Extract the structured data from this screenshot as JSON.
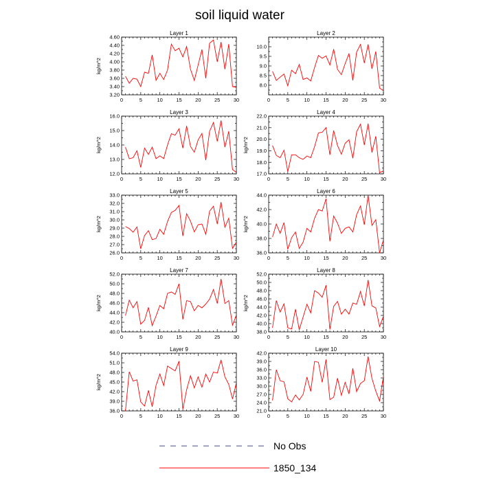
{
  "title": "soil liquid water",
  "legend": [
    {
      "label": "No Obs",
      "style": "dashed",
      "color": "#4a4a8a"
    },
    {
      "label": "1850_134",
      "style": "solid",
      "color": "#ff0000"
    }
  ],
  "chart_data": [
    {
      "type": "line",
      "title": "Layer 1",
      "ylabel": "kg/m^2",
      "xlim": [
        0,
        30
      ],
      "ylim": [
        3.2,
        4.6
      ],
      "yticks": [
        "3.20",
        "3.40",
        "3.60",
        "3.80",
        "4.00",
        "4.20",
        "4.40",
        "4.60"
      ],
      "xticks": [
        "0",
        "5",
        "10",
        "15",
        "20",
        "25",
        "30"
      ],
      "x": [
        1,
        2,
        3,
        4,
        5,
        6,
        7,
        8,
        9,
        10,
        11,
        12,
        13,
        14,
        15,
        16,
        17,
        18,
        19,
        20,
        21,
        22,
        23,
        24,
        25,
        26,
        27,
        28,
        29,
        30
      ],
      "series": [
        {
          "color": "#ff0000",
          "values": [
            3.65,
            3.48,
            3.6,
            3.58,
            3.4,
            3.75,
            3.72,
            4.17,
            3.55,
            3.72,
            3.57,
            3.8,
            4.43,
            4.27,
            4.33,
            4.12,
            4.37,
            3.82,
            3.55,
            3.92,
            4.3,
            3.6,
            4.45,
            4.53,
            4.0,
            4.48,
            3.82,
            4.43,
            3.4,
            3.38
          ]
        }
      ]
    },
    {
      "type": "line",
      "title": "Layer 2",
      "ylabel": "",
      "xlim": [
        0,
        30
      ],
      "ylim": [
        7.5,
        10.5
      ],
      "yticks": [
        "8.0",
        "8.5",
        "9.0",
        "9.5",
        "10.0"
      ],
      "xticks": [
        "0",
        "5",
        "10",
        "15",
        "20",
        "25",
        "30"
      ],
      "x": [
        1,
        2,
        3,
        4,
        5,
        6,
        7,
        8,
        9,
        10,
        11,
        12,
        13,
        14,
        15,
        16,
        17,
        18,
        19,
        20,
        21,
        22,
        23,
        24,
        25,
        26,
        27,
        28,
        29,
        30
      ],
      "series": [
        {
          "color": "#ff0000",
          "values": [
            8.72,
            8.25,
            8.42,
            8.58,
            7.97,
            8.78,
            8.6,
            9.08,
            8.3,
            8.38,
            8.22,
            8.92,
            9.55,
            9.4,
            9.52,
            9.05,
            9.87,
            8.82,
            8.55,
            9.12,
            9.65,
            8.25,
            9.72,
            10.12,
            9.15,
            10.12,
            8.85,
            9.75,
            7.85,
            7.72
          ]
        }
      ]
    },
    {
      "type": "line",
      "title": "Layer 3",
      "ylabel": "kg/m^2",
      "xlim": [
        0,
        30
      ],
      "ylim": [
        12.0,
        16.0
      ],
      "yticks": [
        "12.0",
        "13.0",
        "14.0",
        "15.0",
        "16.0"
      ],
      "xticks": [
        "0",
        "5",
        "10",
        "15",
        "20",
        "25",
        "30"
      ],
      "x": [
        1,
        2,
        3,
        4,
        5,
        6,
        7,
        8,
        9,
        10,
        11,
        12,
        13,
        14,
        15,
        16,
        17,
        18,
        19,
        20,
        21,
        22,
        23,
        24,
        25,
        26,
        27,
        28,
        29,
        30
      ],
      "series": [
        {
          "color": "#ff0000",
          "values": [
            13.85,
            13.05,
            13.12,
            13.6,
            12.45,
            13.78,
            13.35,
            13.85,
            13.05,
            13.25,
            13.05,
            14.0,
            14.78,
            14.68,
            15.12,
            13.78,
            15.32,
            13.9,
            13.5,
            14.35,
            14.8,
            12.95,
            14.95,
            15.55,
            14.25,
            15.7,
            13.85,
            14.95,
            12.3,
            12.1
          ]
        }
      ]
    },
    {
      "type": "line",
      "title": "Layer 4",
      "ylabel": "kg/m^2",
      "xlim": [
        0,
        30
      ],
      "ylim": [
        17.0,
        22.0
      ],
      "yticks": [
        "17.0",
        "18.0",
        "19.0",
        "20.0",
        "21.0",
        "22.0"
      ],
      "xticks": [
        "0",
        "5",
        "10",
        "15",
        "20",
        "25",
        "30"
      ],
      "x": [
        1,
        2,
        3,
        4,
        5,
        6,
        7,
        8,
        9,
        10,
        11,
        12,
        13,
        14,
        15,
        16,
        17,
        18,
        19,
        20,
        21,
        22,
        23,
        24,
        25,
        26,
        27,
        28,
        29,
        30
      ],
      "series": [
        {
          "color": "#ff0000",
          "values": [
            19.45,
            18.6,
            18.4,
            19.05,
            17.2,
            18.65,
            18.65,
            18.4,
            18.25,
            18.55,
            18.4,
            19.35,
            20.55,
            20.6,
            21.0,
            18.65,
            20.75,
            19.45,
            18.7,
            19.65,
            19.95,
            18.35,
            20.65,
            21.3,
            19.5,
            21.35,
            18.85,
            20.25,
            17.1,
            17.25
          ]
        }
      ]
    },
    {
      "type": "line",
      "title": "Layer 5",
      "ylabel": "kg/m^2",
      "xlim": [
        0,
        30
      ],
      "ylim": [
        26.0,
        33.0
      ],
      "yticks": [
        "26.0",
        "27.0",
        "28.0",
        "29.0",
        "30.0",
        "31.0",
        "32.0",
        "33.0"
      ],
      "xticks": [
        "0",
        "5",
        "10",
        "15",
        "20",
        "25",
        "30"
      ],
      "x": [
        1,
        2,
        3,
        4,
        5,
        6,
        7,
        8,
        9,
        10,
        11,
        12,
        13,
        14,
        15,
        16,
        17,
        18,
        19,
        20,
        21,
        22,
        23,
        24,
        25,
        26,
        27,
        28,
        29,
        30
      ],
      "series": [
        {
          "color": "#ff0000",
          "values": [
            29.2,
            28.95,
            28.5,
            29.15,
            26.5,
            28.1,
            28.7,
            27.6,
            27.75,
            28.85,
            28.25,
            29.8,
            30.9,
            31.15,
            31.75,
            28.05,
            30.75,
            29.85,
            28.55,
            29.4,
            29.5,
            28.25,
            31.05,
            31.65,
            29.5,
            32.15,
            29.1,
            30.2,
            26.55,
            27.3
          ]
        }
      ]
    },
    {
      "type": "line",
      "title": "Layer 6",
      "ylabel": "kg/m^2",
      "xlim": [
        0,
        30
      ],
      "ylim": [
        36.0,
        44.0
      ],
      "yticks": [
        "36.0",
        "38.0",
        "40.0",
        "42.0",
        "44.0"
      ],
      "xticks": [
        "0",
        "5",
        "10",
        "15",
        "20",
        "25",
        "30"
      ],
      "x": [
        1,
        2,
        3,
        4,
        5,
        6,
        7,
        8,
        9,
        10,
        11,
        12,
        13,
        14,
        15,
        16,
        17,
        18,
        19,
        20,
        21,
        22,
        23,
        24,
        25,
        26,
        27,
        28,
        29,
        30
      ],
      "series": [
        {
          "color": "#ff0000",
          "values": [
            38.2,
            40.0,
            38.7,
            40.2,
            36.5,
            38.1,
            38.9,
            36.6,
            37.5,
            39.4,
            38.9,
            40.8,
            42.0,
            41.8,
            43.5,
            37.6,
            41.1,
            40.1,
            38.7,
            39.4,
            39.6,
            38.9,
            41.3,
            42.5,
            39.9,
            44.0,
            39.8,
            40.6,
            36.0,
            37.8
          ]
        }
      ]
    },
    {
      "type": "line",
      "title": "Layer 7",
      "ylabel": "kg/m^2",
      "xlim": [
        0,
        30
      ],
      "ylim": [
        40.0,
        52.0
      ],
      "yticks": [
        "40.0",
        "42.0",
        "44.0",
        "46.0",
        "48.0",
        "50.0",
        "52.0"
      ],
      "xticks": [
        "0",
        "5",
        "10",
        "15",
        "20",
        "25",
        "30"
      ],
      "x": [
        1,
        2,
        3,
        4,
        5,
        6,
        7,
        8,
        9,
        10,
        11,
        12,
        13,
        14,
        15,
        16,
        17,
        18,
        19,
        20,
        21,
        22,
        23,
        24,
        25,
        26,
        27,
        28,
        29,
        30
      ],
      "series": [
        {
          "color": "#ff0000",
          "values": [
            43.4,
            46.6,
            45.0,
            46.3,
            41.6,
            42.4,
            45.1,
            41.3,
            43.3,
            45.5,
            44.8,
            48.0,
            48.3,
            47.8,
            50.0,
            42.6,
            46.5,
            46.3,
            44.4,
            45.5,
            45.0,
            45.8,
            46.8,
            48.8,
            45.9,
            51.0,
            45.9,
            46.5,
            41.4,
            43.5
          ]
        }
      ]
    },
    {
      "type": "line",
      "title": "Layer 8",
      "ylabel": "kg/m^2",
      "xlim": [
        0,
        30
      ],
      "ylim": [
        38.0,
        52.0
      ],
      "yticks": [
        "38.0",
        "40.0",
        "42.0",
        "44.0",
        "46.0",
        "48.0",
        "50.0",
        "52.0"
      ],
      "xticks": [
        "0",
        "5",
        "10",
        "15",
        "20",
        "25",
        "30"
      ],
      "x": [
        1,
        2,
        3,
        4,
        5,
        6,
        7,
        8,
        9,
        10,
        11,
        12,
        13,
        14,
        15,
        16,
        17,
        18,
        19,
        20,
        21,
        22,
        23,
        24,
        25,
        26,
        27,
        28,
        29,
        30
      ],
      "series": [
        {
          "color": "#ff0000",
          "values": [
            39.0,
            45.6,
            42.8,
            44.8,
            39.0,
            38.7,
            43.5,
            38.5,
            41.6,
            44.7,
            42.6,
            48.0,
            47.4,
            46.4,
            49.3,
            38.6,
            44.2,
            45.4,
            42.3,
            43.5,
            42.3,
            45.0,
            44.7,
            47.8,
            44.3,
            50.6,
            44.3,
            43.8,
            39.3,
            41.8
          ]
        }
      ]
    },
    {
      "type": "line",
      "title": "Layer 9",
      "ylabel": "kg/m^2",
      "xlim": [
        0,
        30
      ],
      "ylim": [
        36.0,
        54.0
      ],
      "yticks": [
        "36.0",
        "39.0",
        "42.0",
        "45.0",
        "48.0",
        "51.0",
        "54.0"
      ],
      "xticks": [
        "0",
        "5",
        "10",
        "15",
        "20",
        "25",
        "30"
      ],
      "x": [
        1,
        2,
        3,
        4,
        5,
        6,
        7,
        8,
        9,
        10,
        11,
        12,
        13,
        14,
        15,
        16,
        17,
        18,
        19,
        20,
        21,
        22,
        23,
        24,
        25,
        26,
        27,
        28,
        29,
        30
      ],
      "series": [
        {
          "color": "#ff0000",
          "values": [
            36.0,
            48.2,
            45.3,
            45.7,
            38.8,
            37.5,
            42.4,
            37.3,
            44.0,
            47.5,
            43.9,
            50.0,
            49.2,
            48.5,
            51.5,
            36.5,
            42.6,
            47.0,
            43.2,
            46.6,
            43.4,
            47.5,
            45.0,
            48.1,
            47.8,
            51.9,
            46.6,
            44.3,
            39.7,
            44.8
          ]
        }
      ]
    },
    {
      "type": "line",
      "title": "Layer 10",
      "ylabel": "",
      "xlim": [
        0,
        30
      ],
      "ylim": [
        21.0,
        42.0
      ],
      "yticks": [
        "21.0",
        "24.0",
        "27.0",
        "30.0",
        "33.0",
        "36.0",
        "39.0",
        "42.0"
      ],
      "xticks": [
        "0",
        "5",
        "10",
        "15",
        "20",
        "25",
        "30"
      ],
      "x": [
        1,
        2,
        3,
        4,
        5,
        6,
        7,
        8,
        9,
        10,
        11,
        12,
        13,
        14,
        15,
        16,
        17,
        18,
        19,
        20,
        21,
        22,
        23,
        24,
        25,
        26,
        27,
        28,
        29,
        30
      ],
      "series": [
        {
          "color": "#ff0000",
          "values": [
            24.8,
            36.0,
            32.0,
            31.6,
            25.4,
            24.3,
            26.8,
            25.0,
            27.0,
            33.3,
            28.1,
            39.0,
            38.7,
            31.4,
            39.7,
            25.1,
            26.0,
            32.9,
            26.7,
            31.4,
            27.2,
            36.5,
            28.0,
            31.0,
            32.0,
            40.8,
            32.8,
            28.2,
            24.6,
            33.5
          ]
        }
      ]
    }
  ]
}
